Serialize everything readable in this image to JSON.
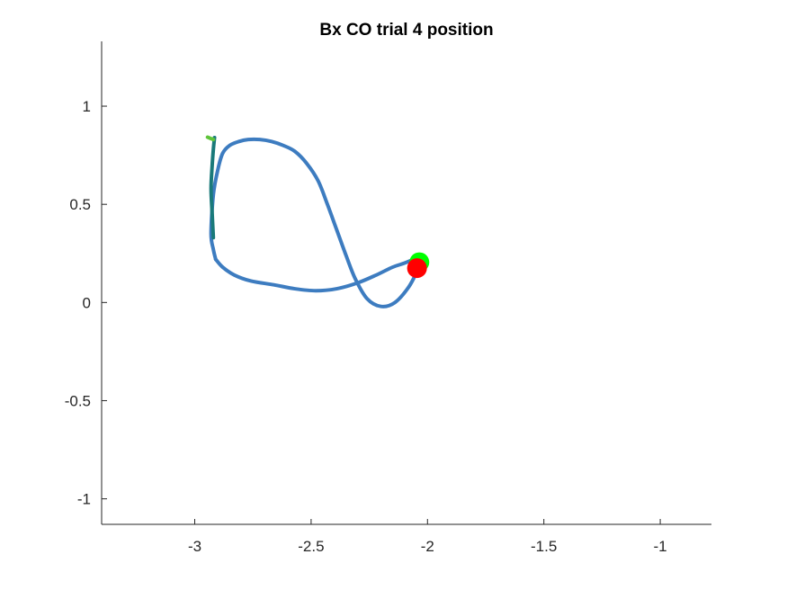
{
  "chart_data": {
    "type": "line",
    "title": "Bx  CO trial 4 position",
    "xlabel": "",
    "ylabel": "",
    "xlim": [
      -3.4,
      -0.78
    ],
    "ylim": [
      -1.13,
      1.33
    ],
    "xticks": [
      -3,
      -2.5,
      -2,
      -1.5,
      -1
    ],
    "xtick_labels": [
      "-3",
      "-2.5",
      "-2",
      "-1.5",
      "-1"
    ],
    "yticks": [
      -1,
      -0.5,
      0,
      0.5,
      1
    ],
    "ytick_labels": [
      "-1",
      "-0.5",
      "0",
      "0.5",
      "1"
    ],
    "grid": false,
    "box": "left-bottom axes only",
    "series": [
      {
        "color": "#3d7cc0",
        "x": [
          -2.04,
          -2.08,
          -2.14,
          -2.2,
          -2.26,
          -2.31,
          -2.35,
          -2.39,
          -2.43,
          -2.47,
          -2.52,
          -2.57,
          -2.62,
          -2.67,
          -2.72,
          -2.77,
          -2.81,
          -2.85,
          -2.88,
          -2.9,
          -2.92,
          -2.93,
          -2.92,
          -2.91
        ],
        "y": [
          0.17,
          0.08,
          0.0,
          -0.02,
          0.02,
          0.12,
          0.24,
          0.37,
          0.5,
          0.62,
          0.71,
          0.77,
          0.8,
          0.82,
          0.83,
          0.83,
          0.82,
          0.8,
          0.76,
          0.68,
          0.55,
          0.35,
          0.27,
          0.22
        ]
      },
      {
        "color": "#3d7cc0",
        "x": [
          -2.91,
          -2.88,
          -2.83,
          -2.76,
          -2.66,
          -2.57,
          -2.48,
          -2.39,
          -2.3,
          -2.22,
          -2.15,
          -2.1,
          -2.06
        ],
        "y": [
          0.22,
          0.18,
          0.14,
          0.11,
          0.09,
          0.07,
          0.06,
          0.07,
          0.1,
          0.14,
          0.18,
          0.2,
          0.22
        ]
      },
      {
        "color": "#1a7a7a",
        "x": [
          -2.92,
          -2.925,
          -2.93,
          -2.925,
          -2.92,
          -2.915
        ],
        "y": [
          0.33,
          0.45,
          0.58,
          0.7,
          0.78,
          0.84
        ]
      },
      {
        "color": "#c23a3a",
        "x": [
          -2.07,
          -2.045
        ],
        "y": [
          0.21,
          0.22
        ]
      },
      {
        "color": "#5fc43a",
        "x": [
          -2.945,
          -2.92
        ],
        "y": [
          0.842,
          0.83
        ]
      }
    ],
    "markers": [
      {
        "name": "start",
        "x": -2.035,
        "y": 0.205,
        "color": "#00ff00"
      },
      {
        "name": "end",
        "x": -2.045,
        "y": 0.175,
        "color": "#ff0000"
      }
    ]
  }
}
